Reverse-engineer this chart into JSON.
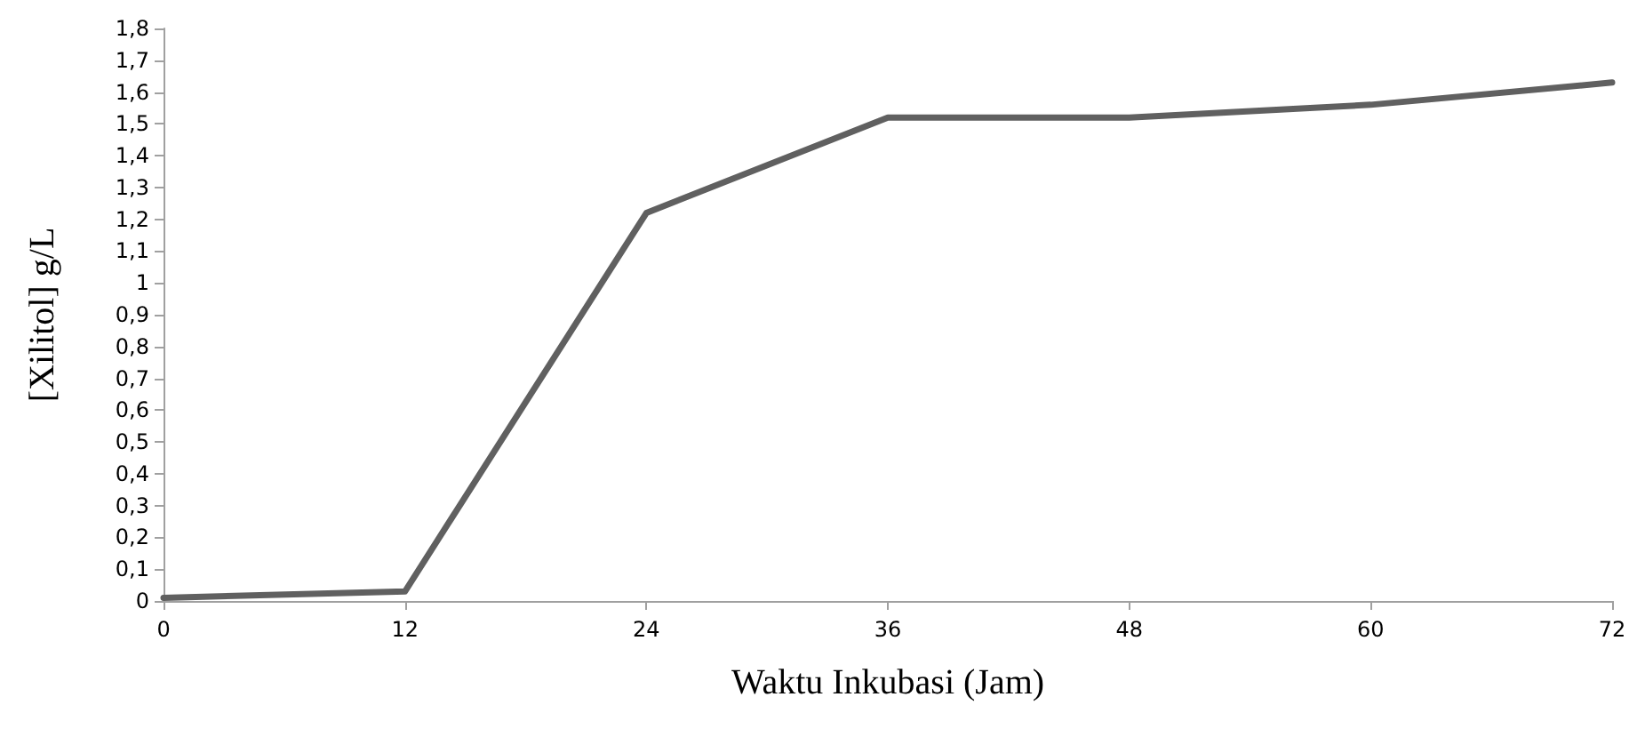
{
  "chart_data": {
    "type": "line",
    "xlabel": "Waktu Inkubasi (Jam)",
    "ylabel": "[Xilitol] g/L",
    "x": [
      0,
      12,
      24,
      36,
      48,
      60,
      72
    ],
    "series": [
      {
        "color": "#606060",
        "values": [
          0.01,
          0.03,
          1.22,
          1.52,
          1.52,
          1.56,
          1.63
        ]
      }
    ],
    "xlim": [
      0,
      72
    ],
    "xticks": [
      0,
      12,
      24,
      36,
      48,
      60,
      72
    ],
    "ylim": [
      0,
      1.8
    ],
    "yticks": [
      0,
      {
        "value": 0.1,
        "label": "0,1"
      },
      {
        "value": 0.2,
        "label": "0,2"
      },
      {
        "value": 0.3,
        "label": "0,3"
      },
      {
        "value": 0.4,
        "label": "0,4"
      },
      {
        "value": 0.5,
        "label": "0,5"
      },
      {
        "value": 0.6,
        "label": "0,6"
      },
      {
        "value": 0.7,
        "label": "0,7"
      },
      {
        "value": 0.8,
        "label": "0,8"
      },
      {
        "value": 0.9,
        "label": "0,9"
      },
      1,
      {
        "value": 1.1,
        "label": "1,1"
      },
      {
        "value": 1.2,
        "label": "1,2"
      },
      {
        "value": 1.3,
        "label": "1,3"
      },
      {
        "value": 1.4,
        "label": "1,4"
      },
      {
        "value": 1.5,
        "label": "1,5"
      },
      {
        "value": 1.6,
        "label": "1,6"
      },
      {
        "value": 1.7,
        "label": "1,7"
      },
      {
        "value": 1.8,
        "label": "1,8"
      }
    ],
    "grid": false,
    "marker": "none",
    "line_style": "solid"
  }
}
